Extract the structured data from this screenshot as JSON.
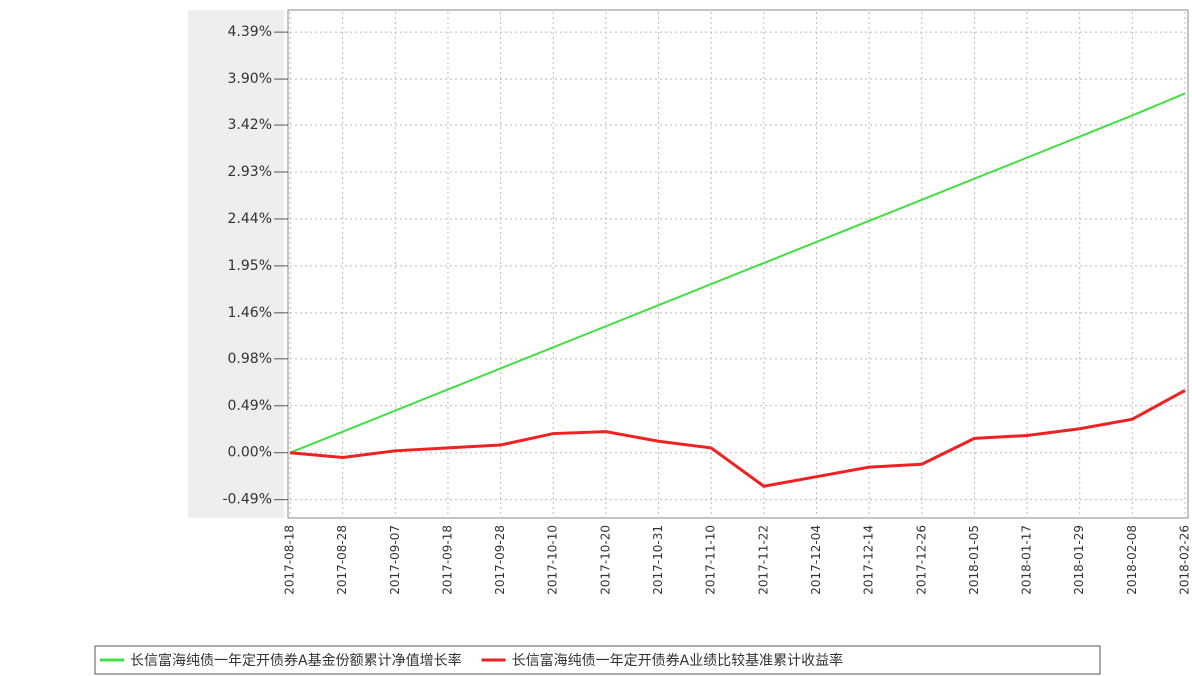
{
  "chart_data": {
    "type": "line",
    "categories": [
      "2017-08-18",
      "2017-08-28",
      "2017-09-07",
      "2017-09-18",
      "2017-09-28",
      "2017-10-10",
      "2017-10-20",
      "2017-10-31",
      "2017-11-10",
      "2017-11-22",
      "2017-12-04",
      "2017-12-14",
      "2017-12-26",
      "2018-01-05",
      "2018-01-17",
      "2018-01-29",
      "2018-02-08",
      "2018-02-26"
    ],
    "series": [
      {
        "name": "长信富海纯债一年定开债券A基金份额累计净值增长率",
        "color": "#44dd44",
        "values": [
          0,
          0.22,
          0.44,
          0.66,
          0.88,
          1.1,
          1.32,
          1.54,
          1.76,
          1.98,
          2.2,
          2.42,
          2.64,
          2.86,
          3.08,
          3.3,
          3.52,
          3.75
        ]
      },
      {
        "name": "长信富海纯债一年定开债券A业绩比较基准累计收益率",
        "color": "#ee2222",
        "values": [
          0,
          -0.05,
          0.02,
          0.05,
          0.08,
          0.2,
          0.22,
          0.12,
          0.05,
          -0.35,
          -0.25,
          -0.15,
          -0.12,
          0.15,
          0.18,
          0.25,
          0.35,
          0.65
        ]
      }
    ],
    "ylim": [
      -0.65,
      4.6
    ],
    "yticks": [
      {
        "value": -0.49,
        "label": "-0.49%"
      },
      {
        "value": 0,
        "label": "0.00%"
      },
      {
        "value": 0.49,
        "label": "0.49%"
      },
      {
        "value": 0.98,
        "label": "0.98%"
      },
      {
        "value": 1.46,
        "label": "1.46%"
      },
      {
        "value": 1.95,
        "label": "1.95%"
      },
      {
        "value": 2.44,
        "label": "2.44%"
      },
      {
        "value": 2.93,
        "label": "2.93%"
      },
      {
        "value": 3.42,
        "label": "3.42%"
      },
      {
        "value": 3.9,
        "label": "3.90%"
      },
      {
        "value": 4.39,
        "label": "4.39%"
      }
    ],
    "grid": true
  }
}
